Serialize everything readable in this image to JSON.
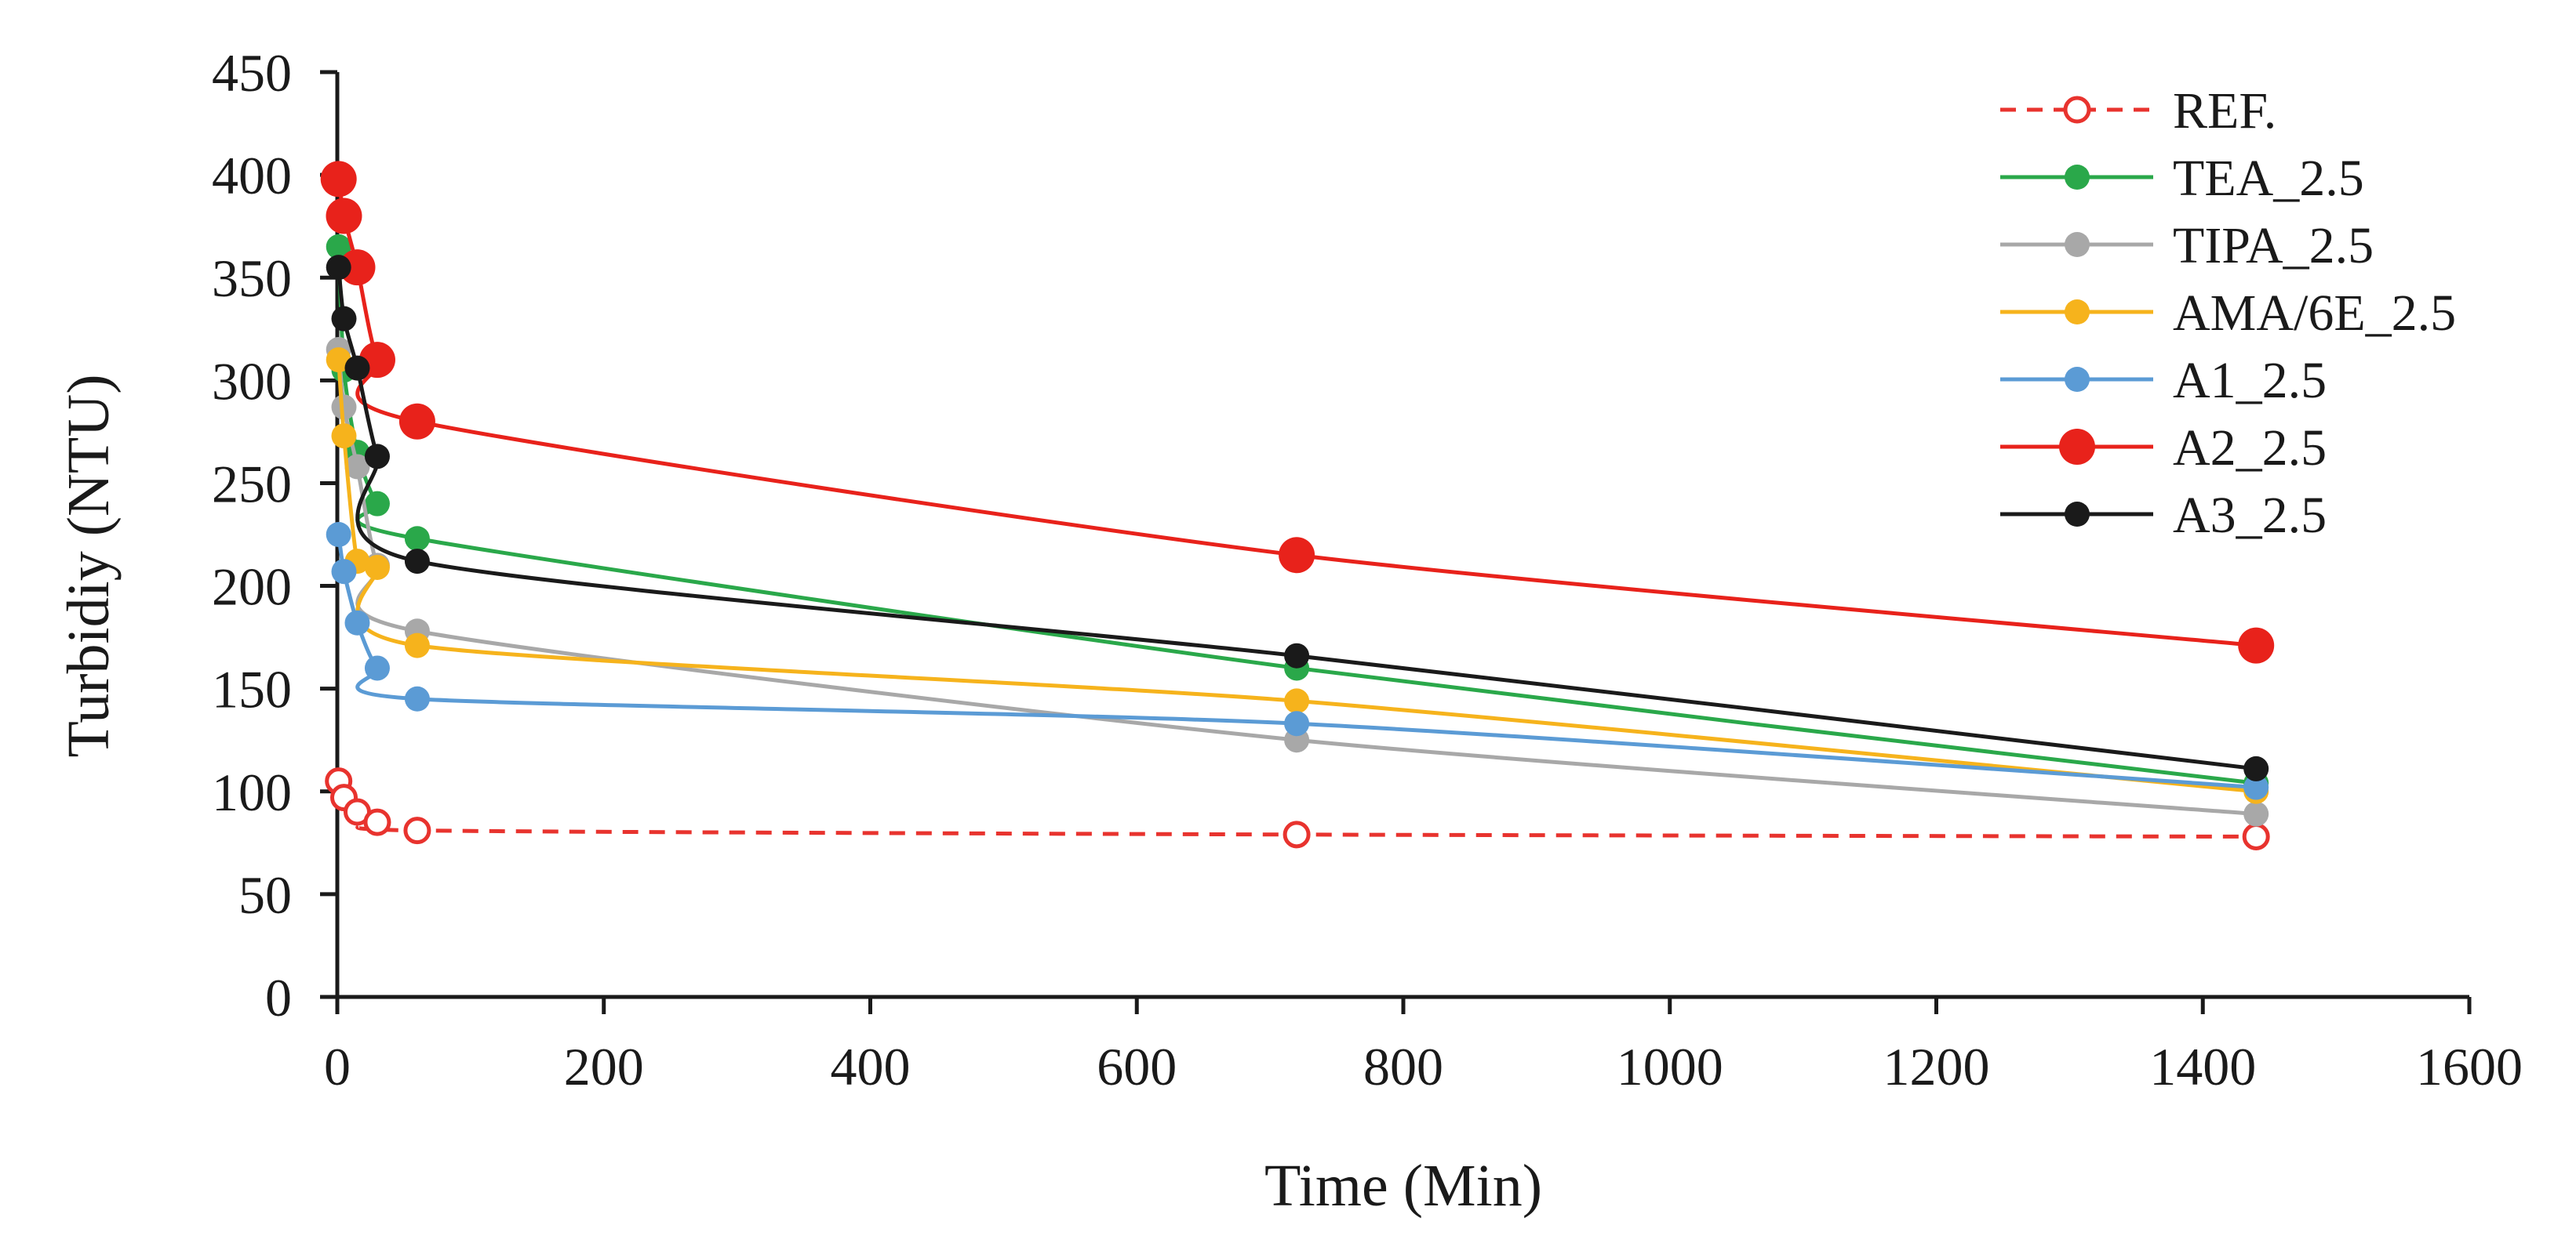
{
  "chart_data": {
    "type": "line",
    "title": "",
    "xlabel": "Time  (Min)",
    "ylabel": "Turbidiy  (NTU)",
    "xlim": [
      0,
      1600
    ],
    "ylim": [
      0,
      450
    ],
    "xticks": [
      0,
      200,
      400,
      600,
      800,
      1000,
      1200,
      1400,
      1600
    ],
    "yticks": [
      0,
      50,
      100,
      150,
      200,
      250,
      300,
      350,
      400,
      450
    ],
    "x": [
      1,
      5,
      15,
      30,
      60,
      720,
      1440
    ],
    "legend_position": "top-right",
    "grid": false,
    "series": [
      {
        "name": "REF.",
        "color": "#e8332e",
        "style": "dashed",
        "marker": "open-circle",
        "marker_size": "medium",
        "values": [
          105,
          97,
          90,
          85,
          81,
          79,
          78
        ]
      },
      {
        "name": "TEA_2.5",
        "color": "#2aa84a",
        "style": "solid",
        "marker": "filled-circle",
        "marker_size": "medium",
        "values": [
          365,
          305,
          265,
          240,
          223,
          160,
          104
        ]
      },
      {
        "name": "TIPA_2.5",
        "color": "#a8a8a8",
        "style": "solid",
        "marker": "filled-circle",
        "marker_size": "medium",
        "values": [
          315,
          287,
          258,
          210,
          178,
          125,
          89
        ]
      },
      {
        "name": "AMA/6E_2.5",
        "color": "#f6b31c",
        "style": "solid",
        "marker": "filled-circle",
        "marker_size": "medium",
        "values": [
          310,
          273,
          212,
          209,
          171,
          144,
          100
        ]
      },
      {
        "name": "A1_2.5",
        "color": "#5b9bd5",
        "style": "solid",
        "marker": "filled-circle",
        "marker_size": "medium",
        "values": [
          225,
          207,
          182,
          160,
          145,
          133,
          102
        ]
      },
      {
        "name": "A2_2.5",
        "color": "#e8221b",
        "style": "solid",
        "marker": "filled-circle",
        "marker_size": "large",
        "values": [
          398,
          380,
          355,
          310,
          280,
          215,
          171
        ]
      },
      {
        "name": "A3_2.5",
        "color": "#1a1a1a",
        "style": "solid",
        "marker": "filled-circle",
        "marker_size": "medium",
        "values": [
          355,
          330,
          306,
          263,
          212,
          166,
          111
        ]
      }
    ]
  }
}
